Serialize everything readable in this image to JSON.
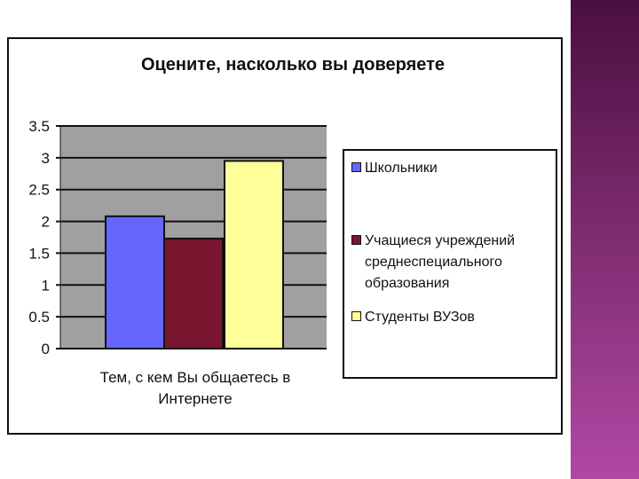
{
  "chart_data": {
    "type": "bar",
    "title": "Оцените, насколько вы доверяете",
    "categories": [
      "Тем, с кем Вы общаетесь в Интернете"
    ],
    "xlabel": "",
    "ylabel": "",
    "ylim": [
      0,
      3.5
    ],
    "yticks": [
      "0",
      "0.5",
      "1",
      "1.5",
      "2",
      "2.5",
      "3",
      "3.5"
    ],
    "grid": true,
    "legend_placement": "right",
    "series": [
      {
        "name": "Школьники",
        "values": [
          2.08
        ],
        "color": "#6666ff"
      },
      {
        "name": "Учащиеся учреждений среднеспециального образования",
        "values": [
          1.73
        ],
        "color": "#7a1530"
      },
      {
        "name": "Студенты ВУЗов",
        "values": [
          2.95
        ],
        "color": "#ffff99"
      }
    ],
    "plot_background": "#a0a0a0"
  }
}
